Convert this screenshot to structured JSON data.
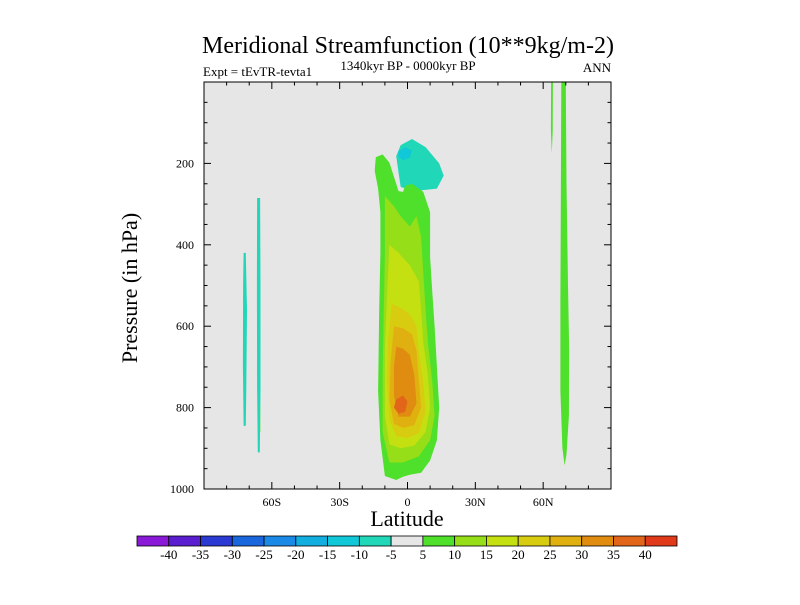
{
  "chart_data": {
    "type": "contour",
    "title": "Meridional Streamfunction (10**9kg/m-2)",
    "left_label": "Expt = tEvTR-tevta1",
    "center_label": "1340kyr BP - 0000kyr BP",
    "right_label": "ANN",
    "xlabel": "Latitude",
    "ylabel": "Pressure (in hPa)",
    "xlim": [
      -90,
      90
    ],
    "ylim": [
      0,
      1000
    ],
    "y_reversed": true,
    "x_ticks": [
      {
        "value": -60,
        "label": "60S"
      },
      {
        "value": -30,
        "label": "30S"
      },
      {
        "value": 0,
        "label": "0"
      },
      {
        "value": 30,
        "label": "30N"
      },
      {
        "value": 60,
        "label": "60N"
      }
    ],
    "y_ticks": [
      {
        "value": 200,
        "label": "200"
      },
      {
        "value": 400,
        "label": "400"
      },
      {
        "value": 600,
        "label": "600"
      },
      {
        "value": 800,
        "label": "800"
      },
      {
        "value": 1000,
        "label": "1000"
      }
    ],
    "colorbar": {
      "levels": [
        -40,
        -35,
        -30,
        -25,
        -20,
        -15,
        -10,
        -5,
        5,
        10,
        15,
        20,
        25,
        30,
        35,
        40
      ],
      "labels": [
        "-40",
        "-35",
        "-30",
        "-25",
        "-20",
        "-15",
        "-10",
        "-5",
        "5",
        "10",
        "15",
        "20",
        "25",
        "30",
        "35",
        "40"
      ],
      "colors": [
        "#8a1ad8",
        "#5a1ed0",
        "#2a3ad2",
        "#1a66dc",
        "#1a8ae6",
        "#12aee0",
        "#10c8d8",
        "#20d8b8",
        "#e6e6e6",
        "#4ee02a",
        "#96de18",
        "#c4e010",
        "#d8cc10",
        "#e0b010",
        "#e08c10",
        "#e2661a",
        "#e03a1a"
      ]
    },
    "background_color": "#e6e6e6",
    "regions": [
      {
        "value": -7.5,
        "color": "#20d8b8",
        "points": [
          [
            -72.5,
            420
          ],
          [
            -71.5,
            420
          ],
          [
            -71,
            560
          ],
          [
            -71.3,
            750
          ],
          [
            -71.5,
            845
          ],
          [
            -72.5,
            845
          ],
          [
            -72.8,
            700
          ],
          [
            -72.7,
            500
          ]
        ]
      },
      {
        "value": -7.5,
        "color": "#20d8b8",
        "points": [
          [
            -66.5,
            285
          ],
          [
            -65.2,
            285
          ],
          [
            -65,
            500
          ],
          [
            -65,
            760
          ],
          [
            -65.3,
            910
          ],
          [
            -66.2,
            910
          ],
          [
            -66.5,
            750
          ],
          [
            -66.6,
            500
          ]
        ]
      },
      {
        "value": -7.5,
        "color": "#20d8b8",
        "points": [
          [
            -3,
            155
          ],
          [
            2,
            140
          ],
          [
            8,
            160
          ],
          [
            14,
            200
          ],
          [
            16,
            230
          ],
          [
            13,
            262
          ],
          [
            8,
            265
          ],
          [
            3,
            268
          ],
          [
            -3,
            258
          ],
          [
            -4,
            222
          ],
          [
            -5,
            182
          ]
        ]
      },
      {
        "value": -12.5,
        "color": "#10c8d8",
        "points": [
          [
            -4,
            170
          ],
          [
            -1,
            160
          ],
          [
            2,
            168
          ],
          [
            1,
            186
          ],
          [
            -2,
            192
          ],
          [
            -4,
            183
          ]
        ]
      },
      {
        "value": 7.5,
        "color": "#4ee02a",
        "points": [
          [
            -14,
            185
          ],
          [
            -11,
            178
          ],
          [
            -8,
            198
          ],
          [
            -5,
            250
          ],
          [
            -4,
            268
          ],
          [
            -2,
            270
          ],
          [
            -1,
            255
          ],
          [
            2,
            250
          ],
          [
            7,
            270
          ],
          [
            10,
            320
          ],
          [
            10,
            430
          ],
          [
            11,
            520
          ],
          [
            12,
            600
          ],
          [
            13,
            700
          ],
          [
            14,
            800
          ],
          [
            13,
            880
          ],
          [
            10,
            930
          ],
          [
            6,
            960
          ],
          [
            1,
            965
          ],
          [
            -2,
            970
          ],
          [
            -5,
            978
          ],
          [
            -10,
            968
          ],
          [
            -12,
            880
          ],
          [
            -13,
            760
          ],
          [
            -12.5,
            560
          ],
          [
            -12,
            420
          ],
          [
            -12,
            320
          ],
          [
            -13,
            262
          ],
          [
            -14.5,
            218
          ]
        ]
      },
      {
        "value": 7.5,
        "color": "#4ee02a",
        "points": [
          [
            -65.5,
            790
          ],
          [
            -65.2,
            790
          ],
          [
            -65.1,
            860
          ],
          [
            -65.4,
            860
          ]
        ]
      },
      {
        "value": 7.5,
        "color": "#4ee02a",
        "points": [
          [
            68,
            0
          ],
          [
            70,
            0
          ],
          [
            70.3,
            250
          ],
          [
            71,
            500
          ],
          [
            71.5,
            660
          ],
          [
            71.4,
            820
          ],
          [
            70.3,
            915
          ],
          [
            69.5,
            942
          ],
          [
            68.5,
            900
          ],
          [
            67.6,
            760
          ],
          [
            67.6,
            540
          ],
          [
            67.8,
            300
          ]
        ]
      },
      {
        "value": 7.5,
        "color": "#4ee02a",
        "points": [
          [
            63.5,
            0
          ],
          [
            64.3,
            0
          ],
          [
            64.2,
            120
          ],
          [
            63.8,
            175
          ],
          [
            63.4,
            120
          ]
        ]
      },
      {
        "value": 12.5,
        "color": "#96de18",
        "points": [
          [
            -10,
            280
          ],
          [
            -6,
            305
          ],
          [
            -3,
            330
          ],
          [
            1,
            355
          ],
          [
            4,
            330
          ],
          [
            6,
            380
          ],
          [
            7,
            470
          ],
          [
            8,
            560
          ],
          [
            9,
            640
          ],
          [
            11,
            740
          ],
          [
            12,
            820
          ],
          [
            10,
            880
          ],
          [
            5,
            920
          ],
          [
            -2,
            935
          ],
          [
            -8,
            935
          ],
          [
            -11,
            860
          ],
          [
            -11,
            720
          ],
          [
            -10.5,
            560
          ],
          [
            -10,
            420
          ]
        ]
      },
      {
        "value": 17.5,
        "color": "#c4e010",
        "points": [
          [
            -8,
            400
          ],
          [
            -4,
            420
          ],
          [
            1,
            450
          ],
          [
            5,
            490
          ],
          [
            6,
            560
          ],
          [
            7,
            640
          ],
          [
            9,
            720
          ],
          [
            10,
            800
          ],
          [
            8,
            860
          ],
          [
            3,
            893
          ],
          [
            -3,
            900
          ],
          [
            -8,
            890
          ],
          [
            -10,
            820
          ],
          [
            -10,
            650
          ],
          [
            -9,
            520
          ]
        ]
      },
      {
        "value": 22.5,
        "color": "#d8cc10",
        "points": [
          [
            -7,
            545
          ],
          [
            -3,
            555
          ],
          [
            1,
            570
          ],
          [
            4,
            600
          ],
          [
            5,
            660
          ],
          [
            7,
            740
          ],
          [
            8,
            812
          ],
          [
            5,
            862
          ],
          [
            0,
            875
          ],
          [
            -5,
            870
          ],
          [
            -8,
            830
          ],
          [
            -9,
            730
          ],
          [
            -8.5,
            630
          ]
        ]
      },
      {
        "value": 27.5,
        "color": "#e0b010",
        "points": [
          [
            -6,
            600
          ],
          [
            -2,
            605
          ],
          [
            2,
            620
          ],
          [
            4,
            660
          ],
          [
            5,
            730
          ],
          [
            6,
            800
          ],
          [
            3,
            843
          ],
          [
            -2,
            850
          ],
          [
            -6,
            840
          ],
          [
            -8,
            780
          ],
          [
            -7.5,
            690
          ]
        ]
      },
      {
        "value": 32.5,
        "color": "#e08c10",
        "points": [
          [
            -5,
            650
          ],
          [
            -2,
            655
          ],
          [
            1,
            670
          ],
          [
            3,
            720
          ],
          [
            4,
            790
          ],
          [
            1,
            822
          ],
          [
            -4,
            822
          ],
          [
            -6,
            770
          ],
          [
            -6,
            700
          ]
        ]
      },
      {
        "value": 37.5,
        "color": "#e2661a",
        "points": [
          [
            -5,
            780
          ],
          [
            -2,
            770
          ],
          [
            0,
            785
          ],
          [
            -1,
            810
          ],
          [
            -4,
            815
          ],
          [
            -6,
            800
          ]
        ]
      }
    ]
  }
}
